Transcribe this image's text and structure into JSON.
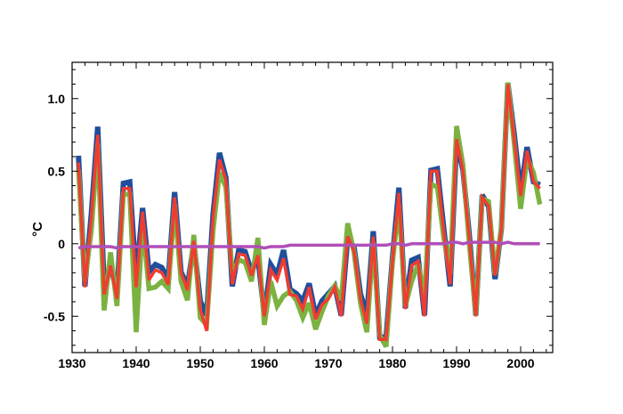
{
  "chart_data": {
    "type": "line",
    "title": "",
    "xlabel": "",
    "ylabel": "°C",
    "xlim": [
      1930,
      2005
    ],
    "ylim": [
      -0.75,
      1.25
    ],
    "x_ticks": [
      1930,
      1940,
      1950,
      1960,
      1970,
      1980,
      1990,
      2000
    ],
    "y_ticks": [
      -0.5,
      0,
      0.5,
      1.0
    ],
    "x_tick_labels": [
      "1930",
      "1940",
      "1950",
      "1960",
      "1970",
      "1980",
      "1990",
      "2000"
    ],
    "y_tick_labels": [
      "-0.5",
      "0",
      "0.5",
      "1.0"
    ],
    "grid": false,
    "x": [
      1931,
      1932,
      1933,
      1934,
      1935,
      1936,
      1937,
      1938,
      1939,
      1940,
      1941,
      1942,
      1943,
      1944,
      1945,
      1946,
      1947,
      1948,
      1949,
      1950,
      1951,
      1952,
      1953,
      1954,
      1955,
      1956,
      1957,
      1958,
      1959,
      1960,
      1961,
      1962,
      1963,
      1964,
      1965,
      1966,
      1967,
      1968,
      1969,
      1970,
      1971,
      1972,
      1973,
      1974,
      1975,
      1976,
      1977,
      1978,
      1979,
      1980,
      1981,
      1982,
      1983,
      1984,
      1985,
      1986,
      1987,
      1988,
      1989,
      1990,
      1991,
      1992,
      1993,
      1994,
      1995,
      1996,
      1997,
      1998,
      1999,
      2000,
      2001,
      2002,
      2003
    ],
    "series": [
      {
        "color": "#1f4e9c",
        "values": [
          0.6,
          -0.3,
          0.2,
          0.8,
          -0.3,
          -0.15,
          -0.35,
          0.41,
          0.42,
          -0.25,
          0.24,
          -0.2,
          -0.15,
          -0.17,
          -0.25,
          0.35,
          -0.2,
          -0.3,
          0.0,
          -0.4,
          -0.5,
          0.2,
          0.62,
          0.45,
          -0.3,
          -0.05,
          -0.06,
          -0.2,
          -0.1,
          -0.5,
          -0.15,
          -0.22,
          -0.05,
          -0.32,
          -0.35,
          -0.4,
          -0.28,
          -0.5,
          -0.4,
          -0.35,
          -0.3,
          -0.5,
          0.03,
          -0.03,
          -0.35,
          -0.5,
          0.08,
          -0.65,
          -0.65,
          -0.1,
          0.38,
          -0.45,
          -0.12,
          -0.1,
          -0.5,
          0.5,
          0.51,
          0.1,
          -0.3,
          0.7,
          0.5,
          0.05,
          -0.5,
          0.33,
          0.25,
          -0.25,
          0.1,
          1.1,
          0.75,
          0.35,
          0.66,
          0.42,
          0.4
        ]
      },
      {
        "color": "#7bb241",
        "values": [
          0.52,
          -0.25,
          0.1,
          0.7,
          -0.45,
          -0.05,
          -0.42,
          0.35,
          0.35,
          -0.6,
          0.15,
          -0.3,
          -0.29,
          -0.25,
          -0.3,
          0.28,
          -0.25,
          -0.38,
          0.07,
          -0.5,
          -0.55,
          0.1,
          0.5,
          0.4,
          -0.2,
          -0.1,
          -0.12,
          -0.25,
          0.05,
          -0.55,
          -0.25,
          -0.42,
          -0.35,
          -0.32,
          -0.38,
          -0.5,
          -0.4,
          -0.58,
          -0.46,
          -0.35,
          -0.28,
          -0.38,
          0.15,
          -0.05,
          -0.4,
          -0.6,
          0.02,
          -0.62,
          -0.7,
          -0.12,
          0.28,
          -0.42,
          -0.25,
          -0.13,
          -0.35,
          0.42,
          0.4,
          0.05,
          -0.2,
          0.82,
          0.55,
          0.0,
          -0.48,
          0.32,
          0.3,
          -0.2,
          0.12,
          1.12,
          0.7,
          0.25,
          0.6,
          0.5,
          0.28
        ]
      },
      {
        "color": "#f03c30",
        "values": [
          0.56,
          -0.3,
          0.18,
          0.75,
          -0.35,
          -0.15,
          -0.38,
          0.38,
          0.38,
          -0.3,
          0.22,
          -0.25,
          -0.18,
          -0.2,
          -0.28,
          0.32,
          -0.2,
          -0.32,
          0.02,
          -0.45,
          -0.6,
          0.18,
          0.58,
          0.44,
          -0.28,
          -0.07,
          -0.08,
          -0.22,
          -0.08,
          -0.5,
          -0.18,
          -0.25,
          -0.1,
          -0.35,
          -0.36,
          -0.45,
          -0.3,
          -0.52,
          -0.42,
          -0.38,
          -0.3,
          -0.5,
          0.05,
          -0.05,
          -0.38,
          -0.55,
          0.05,
          -0.66,
          -0.66,
          -0.12,
          0.35,
          -0.45,
          -0.15,
          -0.12,
          -0.5,
          0.5,
          0.5,
          0.08,
          -0.28,
          0.72,
          0.5,
          0.03,
          -0.5,
          0.32,
          0.26,
          -0.22,
          0.1,
          1.1,
          0.72,
          0.33,
          0.64,
          0.43,
          0.38
        ]
      },
      {
        "color": "#b04fb8",
        "values": [
          -0.03,
          -0.02,
          -0.02,
          -0.02,
          -0.02,
          -0.02,
          -0.03,
          -0.02,
          -0.02,
          -0.02,
          -0.02,
          -0.02,
          -0.02,
          -0.02,
          -0.02,
          -0.02,
          -0.02,
          -0.02,
          -0.02,
          -0.02,
          -0.02,
          -0.02,
          -0.02,
          -0.02,
          -0.02,
          -0.02,
          -0.02,
          -0.02,
          -0.02,
          -0.03,
          -0.02,
          -0.02,
          -0.02,
          -0.01,
          -0.01,
          -0.01,
          -0.01,
          -0.01,
          -0.01,
          -0.01,
          -0.01,
          -0.01,
          -0.01,
          -0.01,
          -0.01,
          -0.01,
          -0.01,
          -0.01,
          -0.01,
          0.0,
          0.0,
          -0.01,
          0.0,
          0.0,
          0.0,
          0.0,
          0.0,
          0.0,
          0.01,
          0.01,
          0.0,
          0.01,
          0.01,
          0.01,
          0.01,
          0.01,
          0.0,
          0.01,
          0.0,
          0.0,
          0.0,
          0.0,
          0.0
        ]
      }
    ]
  }
}
